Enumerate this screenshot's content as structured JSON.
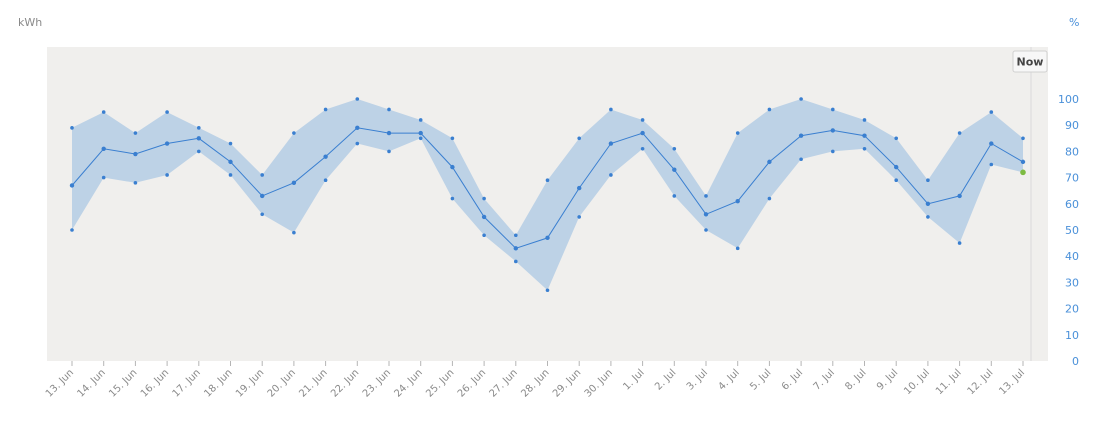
{
  "chart_data": {
    "type": "line",
    "left_unit": "kWh",
    "right_unit": "%",
    "now_label": "Now",
    "yticks": [
      0,
      10,
      20,
      30,
      40,
      50,
      60,
      70,
      80,
      90,
      100
    ],
    "ylim": [
      0,
      115
    ],
    "categories": [
      "13. Jun",
      "14. Jun",
      "15. Jun",
      "16. Jun",
      "17. Jun",
      "18. Jun",
      "19. Jun",
      "20. Jun",
      "21. Jun",
      "22. Jun",
      "23. Jun",
      "24. Jun",
      "25. Jun",
      "26. Jun",
      "27. Jun",
      "28. Jun",
      "29. Jun",
      "30. Jun",
      "1. Jul",
      "2. Jul",
      "3. Jul",
      "4. Jul",
      "5. Jul",
      "6. Jul",
      "7. Jul",
      "8. Jul",
      "9. Jul",
      "10. Jul",
      "11. Jul",
      "12. Jul",
      "13. Jul"
    ],
    "series": [
      {
        "values": [
          67,
          81,
          79,
          83,
          85,
          76,
          63,
          68,
          78,
          89,
          87,
          87,
          74,
          55,
          43,
          47,
          66,
          83,
          87,
          73,
          56,
          61,
          76,
          86,
          88,
          86,
          74,
          60,
          63,
          83,
          76
        ]
      },
      {
        "values": [
          50,
          70,
          68,
          71,
          80,
          71,
          56,
          49,
          69,
          83,
          80,
          85,
          62,
          48,
          38,
          27,
          55,
          71,
          81,
          63,
          50,
          43,
          62,
          77,
          80,
          81,
          69,
          55,
          45,
          75,
          72
        ]
      },
      {
        "values": [
          89,
          95,
          87,
          95,
          89,
          83,
          71,
          87,
          96,
          100,
          96,
          92,
          85,
          62,
          48,
          69,
          85,
          96,
          92,
          81,
          63,
          87,
          96,
          100,
          96,
          92,
          85,
          69,
          87,
          95,
          85
        ]
      }
    ],
    "current_value": 72,
    "colors": {
      "line": "#3a7fd0",
      "band": "#bdd2e6",
      "plot_bg": "#f0efed",
      "axis_text": "#4a90d9",
      "unit_left": "#8a8a8a",
      "current_point": "#7dbb42"
    }
  }
}
